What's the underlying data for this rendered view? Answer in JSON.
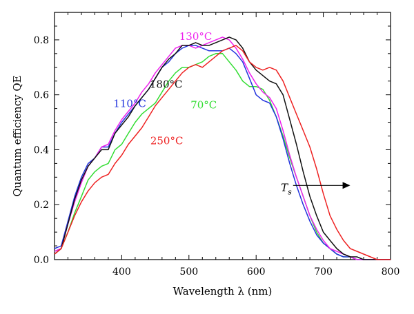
{
  "chart_data": {
    "type": "line",
    "xlabel": "Wavelength λ (nm)",
    "ylabel": "Quantum efficiency QE",
    "xlim": [
      300,
      800
    ],
    "ylim": [
      0.0,
      0.9
    ],
    "xticks": [
      400,
      500,
      600,
      700,
      800
    ],
    "yticks": [
      0.0,
      0.2,
      0.4,
      0.6,
      0.8
    ],
    "xtick_labels": [
      "400",
      "500",
      "600",
      "700",
      "800"
    ],
    "ytick_labels": [
      "0.0",
      "0.2",
      "0.4",
      "0.6",
      "0.8"
    ],
    "grid": false,
    "legend": "inline labels",
    "annotation": {
      "text": "T",
      "subscript": "s",
      "arrow_from": [
        655,
        0.27
      ],
      "arrow_to": [
        740,
        0.27
      ]
    },
    "series": [
      {
        "name": "70°C",
        "color": "#33dd33",
        "x": [
          300,
          310,
          320,
          330,
          340,
          350,
          360,
          370,
          380,
          390,
          400,
          410,
          420,
          430,
          440,
          450,
          460,
          470,
          480,
          490,
          500,
          510,
          520,
          530,
          540,
          550,
          560,
          570,
          580,
          590,
          600,
          610,
          620,
          630,
          640,
          650,
          660,
          670,
          680,
          690,
          700,
          710,
          720,
          730,
          740,
          750,
          760,
          770,
          780,
          790,
          800
        ],
        "y": [
          0.03,
          0.04,
          0.1,
          0.17,
          0.23,
          0.29,
          0.32,
          0.34,
          0.35,
          0.4,
          0.42,
          0.46,
          0.5,
          0.53,
          0.55,
          0.57,
          0.61,
          0.65,
          0.68,
          0.7,
          0.7,
          0.71,
          0.72,
          0.74,
          0.75,
          0.75,
          0.72,
          0.69,
          0.65,
          0.63,
          0.63,
          0.62,
          0.58,
          0.52,
          0.45,
          0.37,
          0.3,
          0.23,
          0.16,
          0.1,
          0.06,
          0.04,
          0.02,
          0.01,
          0.01,
          0.0,
          0.0,
          0.0,
          0.0,
          0.0,
          0.0
        ]
      },
      {
        "name": "110°C",
        "color": "#2233dd",
        "x": [
          300,
          310,
          320,
          330,
          340,
          350,
          360,
          370,
          380,
          390,
          400,
          410,
          420,
          430,
          440,
          450,
          460,
          470,
          480,
          490,
          500,
          510,
          520,
          530,
          540,
          550,
          560,
          570,
          580,
          590,
          600,
          610,
          620,
          630,
          640,
          650,
          660,
          670,
          680,
          690,
          700,
          710,
          720,
          730,
          740,
          750,
          760,
          770,
          780,
          790,
          800
        ],
        "y": [
          0.04,
          0.05,
          0.14,
          0.23,
          0.3,
          0.35,
          0.37,
          0.41,
          0.41,
          0.46,
          0.5,
          0.53,
          0.56,
          0.59,
          0.62,
          0.66,
          0.7,
          0.72,
          0.75,
          0.77,
          0.78,
          0.78,
          0.77,
          0.76,
          0.76,
          0.76,
          0.77,
          0.75,
          0.72,
          0.66,
          0.6,
          0.58,
          0.57,
          0.52,
          0.44,
          0.35,
          0.27,
          0.2,
          0.14,
          0.09,
          0.06,
          0.04,
          0.02,
          0.01,
          0.01,
          0.0,
          0.0,
          0.0,
          0.0,
          0.0,
          0.0
        ]
      },
      {
        "name": "130°C",
        "color": "#ee22ee",
        "x": [
          300,
          310,
          320,
          330,
          340,
          350,
          360,
          370,
          380,
          390,
          400,
          410,
          420,
          430,
          440,
          450,
          460,
          470,
          480,
          490,
          500,
          510,
          520,
          530,
          540,
          550,
          560,
          570,
          580,
          590,
          600,
          610,
          620,
          630,
          640,
          650,
          660,
          670,
          680,
          690,
          700,
          710,
          720,
          730,
          740,
          750,
          760,
          770,
          780,
          790,
          800
        ],
        "y": [
          0.03,
          0.04,
          0.13,
          0.21,
          0.28,
          0.34,
          0.37,
          0.41,
          0.42,
          0.47,
          0.51,
          0.54,
          0.57,
          0.61,
          0.64,
          0.68,
          0.71,
          0.74,
          0.77,
          0.78,
          0.78,
          0.77,
          0.78,
          0.79,
          0.8,
          0.81,
          0.8,
          0.77,
          0.73,
          0.68,
          0.64,
          0.61,
          0.59,
          0.55,
          0.47,
          0.38,
          0.3,
          0.23,
          0.16,
          0.11,
          0.07,
          0.04,
          0.03,
          0.02,
          0.01,
          0.0,
          0.0,
          0.0,
          0.0,
          0.0,
          0.0
        ]
      },
      {
        "name": "180°C",
        "color": "#111111",
        "x": [
          300,
          310,
          320,
          330,
          340,
          350,
          360,
          370,
          380,
          390,
          400,
          410,
          420,
          430,
          440,
          450,
          460,
          470,
          480,
          490,
          500,
          510,
          520,
          530,
          540,
          550,
          560,
          570,
          580,
          590,
          600,
          610,
          620,
          630,
          640,
          650,
          660,
          670,
          680,
          690,
          700,
          710,
          720,
          730,
          740,
          750,
          760,
          770,
          780,
          790,
          800
        ],
        "y": [
          0.02,
          0.04,
          0.13,
          0.22,
          0.29,
          0.34,
          0.37,
          0.4,
          0.4,
          0.46,
          0.49,
          0.52,
          0.56,
          0.59,
          0.62,
          0.66,
          0.7,
          0.73,
          0.75,
          0.78,
          0.78,
          0.79,
          0.78,
          0.78,
          0.79,
          0.8,
          0.81,
          0.8,
          0.77,
          0.72,
          0.69,
          0.67,
          0.65,
          0.64,
          0.6,
          0.51,
          0.42,
          0.32,
          0.23,
          0.16,
          0.1,
          0.07,
          0.04,
          0.02,
          0.01,
          0.01,
          0.0,
          0.0,
          0.0,
          0.0,
          0.0
        ]
      },
      {
        "name": "250°C",
        "color": "#ee2222",
        "x": [
          300,
          310,
          320,
          330,
          340,
          350,
          360,
          370,
          380,
          390,
          400,
          410,
          420,
          430,
          440,
          450,
          460,
          470,
          480,
          490,
          500,
          510,
          520,
          530,
          540,
          550,
          560,
          570,
          580,
          590,
          600,
          610,
          620,
          630,
          640,
          650,
          660,
          670,
          680,
          690,
          700,
          710,
          720,
          730,
          740,
          750,
          760,
          770,
          780,
          790,
          800
        ],
        "y": [
          0.02,
          0.04,
          0.1,
          0.16,
          0.21,
          0.25,
          0.28,
          0.3,
          0.31,
          0.35,
          0.38,
          0.42,
          0.45,
          0.48,
          0.52,
          0.56,
          0.59,
          0.62,
          0.65,
          0.68,
          0.7,
          0.71,
          0.7,
          0.72,
          0.74,
          0.76,
          0.77,
          0.78,
          0.76,
          0.72,
          0.7,
          0.69,
          0.7,
          0.69,
          0.65,
          0.59,
          0.53,
          0.47,
          0.41,
          0.33,
          0.24,
          0.16,
          0.11,
          0.07,
          0.04,
          0.03,
          0.02,
          0.01,
          0.0,
          0.0,
          0.0
        ]
      }
    ],
    "labels": [
      {
        "text": "130°C",
        "series": 2,
        "x": 510,
        "y": 0.8
      },
      {
        "text": "180°C",
        "series": 3,
        "x": 466,
        "y": 0.625
      },
      {
        "text": "110°C",
        "series": 1,
        "x": 412,
        "y": 0.555
      },
      {
        "text": "70°C",
        "series": 0,
        "x": 522,
        "y": 0.55
      },
      {
        "text": "250°C",
        "series": 4,
        "x": 467,
        "y": 0.42
      }
    ]
  }
}
